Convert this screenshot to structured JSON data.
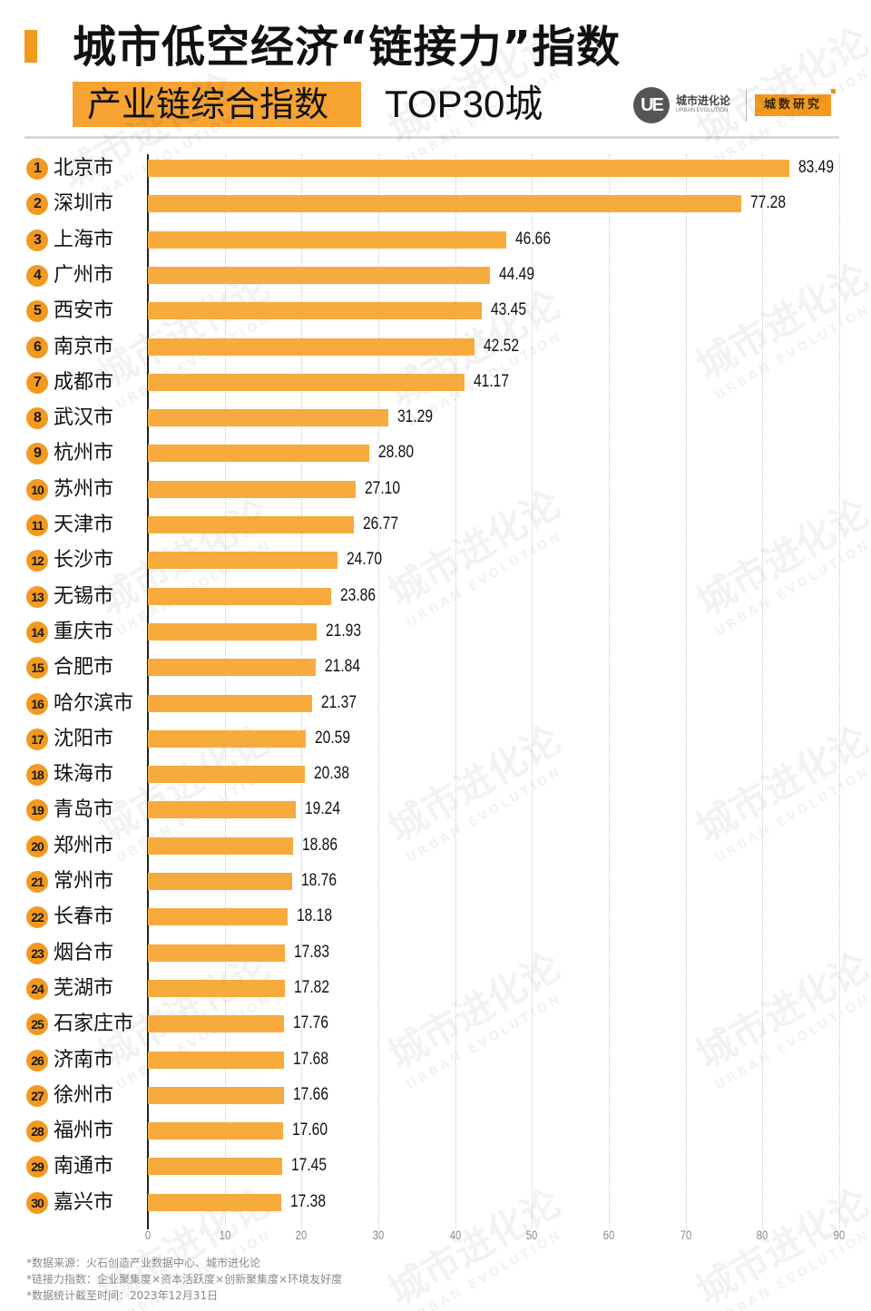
{
  "header": {
    "title": "城市低空经济“链接力”指数",
    "subtitle_highlight": "产业链综合指数",
    "subtitle_suffix": "TOP30城",
    "logo": {
      "mark": "UE",
      "name": "城市进化论",
      "name_en": "URBAN EVOLUTION",
      "tag": "城数研究"
    }
  },
  "colors": {
    "accent": "#F39A1E",
    "bar": "#F6AB3C",
    "text": "#111111",
    "axis_label": "#888888"
  },
  "watermark": {
    "cn": "城市进化论",
    "en": "URBAN EVOLUTION"
  },
  "chart_data": {
    "type": "bar",
    "orientation": "horizontal",
    "title": "城市低空经济“链接力”指数 产业链综合指数 TOP30城",
    "xlabel": "",
    "ylabel": "",
    "xlim": [
      0,
      90
    ],
    "x_ticks": [
      0,
      10,
      20,
      30,
      40,
      50,
      60,
      70,
      80,
      90
    ],
    "grid": "vertical dotted",
    "legend": "none",
    "data_labels": true,
    "categories": [
      "北京市",
      "深圳市",
      "上海市",
      "广州市",
      "西安市",
      "南京市",
      "成都市",
      "武汉市",
      "杭州市",
      "苏州市",
      "天津市",
      "长沙市",
      "无锡市",
      "重庆市",
      "合肥市",
      "哈尔滨市",
      "沈阳市",
      "珠海市",
      "青岛市",
      "郑州市",
      "常州市",
      "长春市",
      "烟台市",
      "芜湖市",
      "石家庄市",
      "济南市",
      "徐州市",
      "福州市",
      "南通市",
      "嘉兴市"
    ],
    "ranks": [
      1,
      2,
      3,
      4,
      5,
      6,
      7,
      8,
      9,
      10,
      11,
      12,
      13,
      14,
      15,
      16,
      17,
      18,
      19,
      20,
      21,
      22,
      23,
      24,
      25,
      26,
      27,
      28,
      29,
      30
    ],
    "values": [
      83.49,
      77.28,
      46.66,
      44.49,
      43.45,
      42.52,
      41.17,
      31.29,
      28.8,
      27.1,
      26.77,
      24.7,
      23.86,
      21.93,
      21.84,
      21.37,
      20.59,
      20.38,
      19.24,
      18.86,
      18.76,
      18.18,
      17.83,
      17.82,
      17.76,
      17.68,
      17.66,
      17.6,
      17.45,
      17.38
    ],
    "value_labels": [
      "83.49",
      "77.28",
      "46.66",
      "44.49",
      "43.45",
      "42.52",
      "41.17",
      "31.29",
      "28.80",
      "27.10",
      "26.77",
      "24.70",
      "23.86",
      "21.93",
      "21.84",
      "21.37",
      "20.59",
      "20.38",
      "19.24",
      "18.86",
      "18.76",
      "18.18",
      "17.83",
      "17.82",
      "17.76",
      "17.68",
      "17.66",
      "17.60",
      "17.45",
      "17.38"
    ]
  },
  "footnotes": [
    "*数据来源：火石创造产业数据中心、城市进化论",
    "*链接力指数：企业聚集度×资本活跃度×创新聚集度×环境友好度",
    "*数据统计截至时间：2023年12月31日"
  ]
}
